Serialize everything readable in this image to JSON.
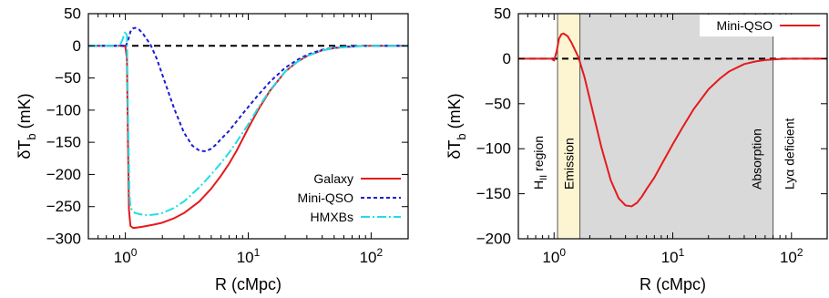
{
  "chart_data": [
    {
      "type": "line",
      "panel": "left",
      "xlabel": "R (cMpc)",
      "ylabel": "δT_b (mK)",
      "x_scale": "log",
      "xlim": [
        0.5,
        200
      ],
      "ylim": [
        -300,
        50
      ],
      "x_ticks": [
        {
          "value": 1,
          "label": "10^0"
        },
        {
          "value": 10,
          "label": "10^1"
        },
        {
          "value": 100,
          "label": "10^2"
        }
      ],
      "y_ticks": [
        50,
        0,
        -50,
        -100,
        -150,
        -200,
        -250,
        -300
      ],
      "y_tick_labels": [
        "50",
        "0",
        "−50",
        "−100",
        "−150",
        "−200",
        "−250",
        "−300"
      ],
      "legend_position": "bottom-right",
      "reference_line": {
        "y": 0,
        "style": "dashed",
        "color": "#000000"
      },
      "series": [
        {
          "name": "Galaxy",
          "color": "#e41a1c",
          "style": "solid",
          "x": [
            0.5,
            0.95,
            1.0,
            1.03,
            1.05,
            1.07,
            1.1,
            1.15,
            1.2,
            1.4,
            1.7,
            2,
            2.5,
            3,
            4,
            5,
            6,
            7,
            8,
            10,
            12,
            15,
            20,
            25,
            30,
            40,
            50,
            60,
            80,
            100,
            150,
            200
          ],
          "y": [
            0,
            0,
            -1,
            -20,
            -150,
            -255,
            -280,
            -283,
            -283,
            -281,
            -278,
            -275,
            -268,
            -260,
            -242,
            -222,
            -202,
            -183,
            -164,
            -128,
            -100,
            -70,
            -40,
            -25,
            -16,
            -7,
            -3.5,
            -2,
            -0.5,
            0,
            0,
            0
          ]
        },
        {
          "name": "Mini-QSO",
          "color": "#1c1cd6",
          "style": "dotted",
          "x": [
            0.5,
            0.95,
            1.0,
            1.05,
            1.1,
            1.15,
            1.2,
            1.3,
            1.4,
            1.6,
            1.8,
            2,
            2.5,
            3,
            3.5,
            4,
            4.5,
            5,
            5.5,
            6,
            7,
            8,
            10,
            12,
            15,
            20,
            25,
            30,
            40,
            50,
            60,
            80,
            100,
            150,
            200
          ],
          "y": [
            0,
            0,
            -2,
            8,
            22,
            27,
            28,
            25,
            18,
            2,
            -20,
            -45,
            -98,
            -135,
            -155,
            -163,
            -164,
            -160,
            -153,
            -145,
            -132,
            -118,
            -95,
            -77,
            -56,
            -34,
            -22,
            -14,
            -6,
            -3,
            -1.5,
            -0.3,
            0,
            0,
            0
          ]
        },
        {
          "name": "HMXBs",
          "color": "#22dde6",
          "style": "dash-dot",
          "x": [
            0.5,
            0.9,
            0.95,
            1.0,
            1.03,
            1.05,
            1.08,
            1.1,
            1.2,
            1.4,
            1.6,
            1.8,
            2,
            2.5,
            3,
            4,
            5,
            6,
            7,
            8,
            10,
            12,
            15,
            20,
            25,
            30,
            40,
            50,
            60,
            80,
            100,
            150,
            200
          ],
          "y": [
            0,
            0,
            10,
            23,
            15,
            -100,
            -230,
            -252,
            -260,
            -263,
            -263,
            -262,
            -260,
            -252,
            -242,
            -220,
            -200,
            -182,
            -166,
            -150,
            -122,
            -97,
            -69,
            -40,
            -25,
            -16,
            -7,
            -3.5,
            -2,
            -0.5,
            0,
            0,
            0
          ]
        }
      ]
    },
    {
      "type": "line",
      "panel": "right",
      "xlabel": "R (cMpc)",
      "ylabel": "δT_b (mK)",
      "x_scale": "log",
      "xlim": [
        0.5,
        200
      ],
      "ylim": [
        -200,
        50
      ],
      "x_ticks": [
        {
          "value": 1,
          "label": "10^0"
        },
        {
          "value": 10,
          "label": "10^1"
        },
        {
          "value": 100,
          "label": "10^2"
        }
      ],
      "y_ticks": [
        50,
        0,
        -50,
        -100,
        -150,
        -200
      ],
      "y_tick_labels": [
        "50",
        "0",
        "−50",
        "−100",
        "−150",
        "−200"
      ],
      "legend_position": "top-right",
      "reference_line": {
        "y": 0,
        "style": "dashed",
        "color": "#000000"
      },
      "series": [
        {
          "name": "Mini-QSO",
          "color": "#e41a1c",
          "style": "solid",
          "x": [
            0.5,
            0.95,
            1.0,
            1.05,
            1.1,
            1.15,
            1.2,
            1.3,
            1.4,
            1.6,
            1.8,
            2,
            2.5,
            3,
            3.5,
            4,
            4.5,
            5,
            5.5,
            6,
            7,
            8,
            10,
            12,
            15,
            20,
            25,
            30,
            40,
            50,
            60,
            80,
            100,
            150,
            200
          ],
          "y": [
            0,
            0,
            -2,
            8,
            22,
            27,
            28,
            25,
            18,
            2,
            -20,
            -45,
            -98,
            -135,
            -155,
            -163,
            -164,
            -160,
            -153,
            -145,
            -132,
            -118,
            -95,
            -77,
            -56,
            -34,
            -22,
            -14,
            -6,
            -3,
            -1.5,
            -0.3,
            0,
            0,
            0
          ]
        }
      ],
      "regions": [
        {
          "label": "H_II region",
          "x_range": [
            0.5,
            1.07
          ],
          "fill": "#ffffff"
        },
        {
          "label": "Emission",
          "x_range": [
            1.07,
            1.65
          ],
          "fill": "#fdf5d2"
        },
        {
          "label": "Absorption",
          "x_range": [
            1.65,
            70
          ],
          "fill": "#d9d9d9"
        },
        {
          "label": "Lyα deficient",
          "x_range": [
            70,
            200
          ],
          "fill": "#ffffff"
        }
      ]
    }
  ]
}
